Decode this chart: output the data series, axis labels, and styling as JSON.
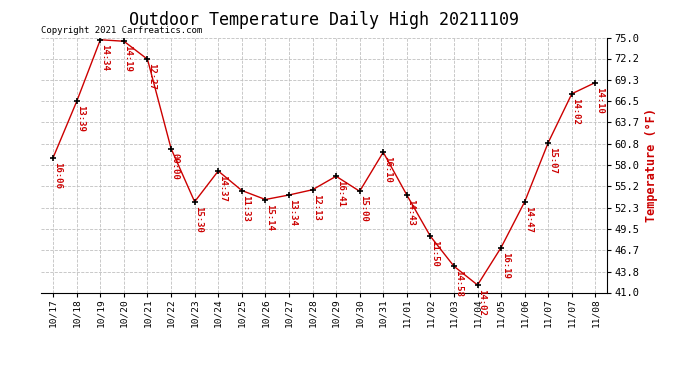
{
  "title": "Outdoor Temperature Daily High 20211109",
  "ylabel": "Temperature (°F)",
  "copyright": "Copyright 2021 Carfreatics.com",
  "line_color": "#cc0000",
  "background_color": "#ffffff",
  "grid_color": "#c0c0c0",
  "dates": [
    "10/17",
    "10/18",
    "10/19",
    "10/20",
    "10/21",
    "10/22",
    "10/23",
    "10/24",
    "10/25",
    "10/26",
    "10/27",
    "10/28",
    "10/29",
    "10/30",
    "10/31",
    "11/01",
    "11/02",
    "11/03",
    "11/04",
    "11/05",
    "11/06",
    "11/07",
    "11/07",
    "11/08"
  ],
  "temperatures": [
    59.0,
    66.5,
    74.7,
    74.5,
    72.1,
    60.2,
    53.1,
    57.2,
    54.6,
    53.4,
    54.0,
    54.7,
    56.5,
    54.5,
    59.7,
    54.0,
    48.5,
    44.5,
    42.0,
    47.0,
    53.1,
    61.0,
    67.5,
    69.0
  ],
  "time_labels": [
    "16:06",
    "13:39",
    "14:34",
    "14:19",
    "12:27",
    "00:00",
    "15:30",
    "14:37",
    "11:33",
    "15:14",
    "13:34",
    "12:13",
    "16:41",
    "15:00",
    "16:10",
    "14:43",
    "11:50",
    "14:58",
    "14:02",
    "16:19",
    "14:47",
    "15:07",
    "14:02",
    "14:10"
  ],
  "x_tick_labels": [
    "10/17",
    "10/18",
    "10/19",
    "10/20",
    "10/21",
    "10/22",
    "10/23",
    "10/24",
    "10/25",
    "10/26",
    "10/27",
    "10/28",
    "10/29",
    "10/30",
    "10/31",
    "11/01",
    "11/02",
    "11/03",
    "11/04",
    "11/05",
    "11/06",
    "11/07",
    "11/07",
    "11/08"
  ],
  "yticks": [
    41.0,
    43.8,
    46.7,
    49.5,
    52.3,
    55.2,
    58.0,
    60.8,
    63.7,
    66.5,
    69.3,
    72.2,
    75.0
  ],
  "ylim": [
    41.0,
    75.0
  ],
  "annotation_color": "#cc0000",
  "annotation_fontsize": 6.5,
  "title_fontsize": 12,
  "ylabel_fontsize": 8.5,
  "copyright_fontsize": 6.5
}
